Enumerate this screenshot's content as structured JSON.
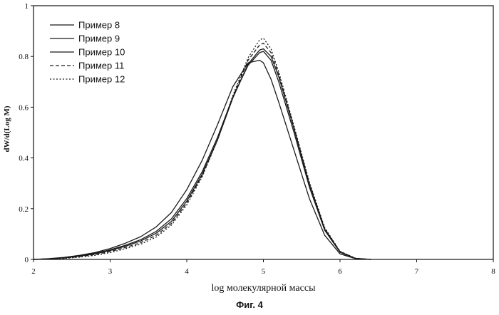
{
  "caption": "Фиг. 4",
  "chart_data": {
    "type": "line",
    "xlabel": "log молекулярной массы",
    "ylabel": "dW/d(Log M)",
    "xlim": [
      2,
      8
    ],
    "ylim": [
      0,
      1
    ],
    "xticks": [
      "2",
      "3",
      "4",
      "5",
      "6",
      "7",
      "8"
    ],
    "yticks": [
      "0",
      "0.2",
      "0.4",
      "0.6",
      "0.8",
      "1"
    ],
    "grid": false,
    "legend_position": "top-left",
    "x": [
      2.0,
      2.2,
      2.4,
      2.6,
      2.8,
      3.0,
      3.2,
      3.4,
      3.6,
      3.8,
      4.0,
      4.2,
      4.4,
      4.6,
      4.8,
      4.95,
      5.0,
      5.1,
      5.2,
      5.4,
      5.6,
      5.8,
      6.0,
      6.2,
      6.4
    ],
    "series": [
      {
        "name": "Пример 8",
        "style": "solid",
        "values": [
          0.0,
          0.003,
          0.008,
          0.016,
          0.027,
          0.043,
          0.064,
          0.09,
          0.128,
          0.185,
          0.275,
          0.39,
          0.53,
          0.68,
          0.775,
          0.785,
          0.775,
          0.71,
          0.62,
          0.43,
          0.24,
          0.095,
          0.022,
          0.003,
          0.0
        ]
      },
      {
        "name": "Пример 9",
        "style": "solid",
        "values": [
          0.0,
          0.002,
          0.007,
          0.014,
          0.024,
          0.038,
          0.056,
          0.078,
          0.11,
          0.16,
          0.24,
          0.345,
          0.48,
          0.64,
          0.765,
          0.815,
          0.82,
          0.785,
          0.7,
          0.5,
          0.285,
          0.115,
          0.028,
          0.004,
          0.0
        ]
      },
      {
        "name": "Пример 10",
        "style": "solid",
        "values": [
          0.0,
          0.002,
          0.006,
          0.013,
          0.022,
          0.035,
          0.052,
          0.073,
          0.103,
          0.15,
          0.23,
          0.335,
          0.47,
          0.635,
          0.77,
          0.825,
          0.83,
          0.8,
          0.72,
          0.515,
          0.295,
          0.12,
          0.03,
          0.004,
          0.0
        ]
      },
      {
        "name": "Пример 11",
        "style": "dashed",
        "values": [
          0.0,
          0.002,
          0.005,
          0.011,
          0.019,
          0.031,
          0.047,
          0.066,
          0.095,
          0.142,
          0.222,
          0.33,
          0.47,
          0.64,
          0.785,
          0.845,
          0.852,
          0.815,
          0.73,
          0.52,
          0.3,
          0.122,
          0.031,
          0.004,
          0.0
        ]
      },
      {
        "name": "Пример 12",
        "style": "dotted",
        "values": [
          0.0,
          0.001,
          0.004,
          0.009,
          0.016,
          0.027,
          0.042,
          0.06,
          0.088,
          0.135,
          0.215,
          0.325,
          0.47,
          0.645,
          0.795,
          0.865,
          0.872,
          0.83,
          0.74,
          0.525,
          0.305,
          0.125,
          0.032,
          0.005,
          0.0
        ]
      }
    ]
  }
}
